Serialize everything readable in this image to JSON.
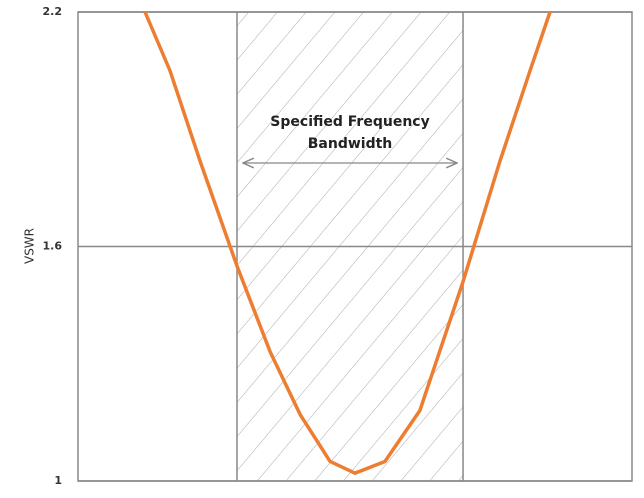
{
  "chart_data": {
    "type": "line",
    "ylabel": "VSWR",
    "annotation": [
      "Specified Frequency",
      "Bandwidth"
    ],
    "band": [
      28.7,
      69.5
    ],
    "xlim": [
      0,
      100
    ],
    "ylim": [
      1,
      2.2
    ],
    "yticks": [
      1,
      1.6,
      2.2
    ],
    "grid": true,
    "series": [
      {
        "color": "#ed7d31",
        "x": [
          12.1,
          16.6,
          22.0,
          28.7,
          34.7,
          40.1,
          45.5,
          50.0,
          55.4,
          61.7,
          69.5,
          76.2,
          81.6,
          85.2
        ],
        "values": [
          2.2,
          2.05,
          1.82,
          1.55,
          1.33,
          1.17,
          1.05,
          1.02,
          1.05,
          1.18,
          1.51,
          1.82,
          2.05,
          2.2
        ]
      }
    ]
  }
}
